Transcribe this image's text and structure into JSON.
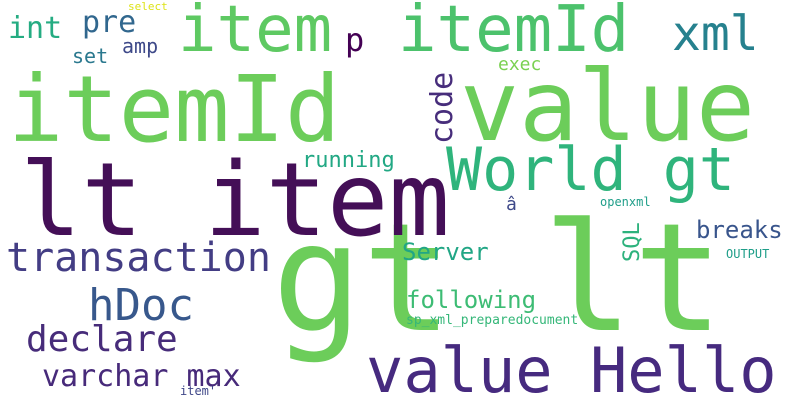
{
  "words": [
    {
      "text": "gt lt",
      "color": "#6ccd5a"
    },
    {
      "text": "itemId",
      "color": "#6ccd5a"
    },
    {
      "text": "value",
      "color": "#6ccd5a"
    },
    {
      "text": "lt item",
      "color": "#440f57"
    },
    {
      "text": "value Hello",
      "color": "#462a7f"
    },
    {
      "text": "item",
      "color": "#5ec962"
    },
    {
      "text": "itemId",
      "color": "#4cc26c"
    },
    {
      "text": "World gt",
      "color": "#2fb47c"
    },
    {
      "text": "transaction",
      "color": "#433d84"
    },
    {
      "text": "hDoc",
      "color": "#38588c"
    },
    {
      "text": "xml",
      "color": "#26818e"
    },
    {
      "text": "declare",
      "color": "#472c7a"
    },
    {
      "text": "varchar max",
      "color": "#472a7a"
    },
    {
      "text": "pre",
      "color": "#31678e"
    },
    {
      "text": "int",
      "color": "#25ac82"
    },
    {
      "text": "p",
      "color": "#440154"
    },
    {
      "text": "code",
      "color": "#472d7b"
    },
    {
      "text": "amp",
      "color": "#3e4989"
    },
    {
      "text": "set",
      "color": "#2a788e"
    },
    {
      "text": "exec",
      "color": "#7ad151"
    },
    {
      "text": "running",
      "color": "#22a884"
    },
    {
      "text": "Server",
      "color": "#21a685"
    },
    {
      "text": "following",
      "color": "#3dbc74"
    },
    {
      "text": "breaks",
      "color": "#39558c"
    },
    {
      "text": "SQL",
      "color": "#2db27d"
    },
    {
      "text": "â",
      "color": "#3e4989"
    },
    {
      "text": "sp_xml_preparedocument",
      "color": "#35b779"
    },
    {
      "text": "openxml",
      "color": "#1f9e89"
    },
    {
      "text": "OUTPUT",
      "color": "#1f9e89"
    },
    {
      "text": "select",
      "color": "#dde318"
    },
    {
      "text": "item'",
      "color": "#3f4788"
    }
  ]
}
